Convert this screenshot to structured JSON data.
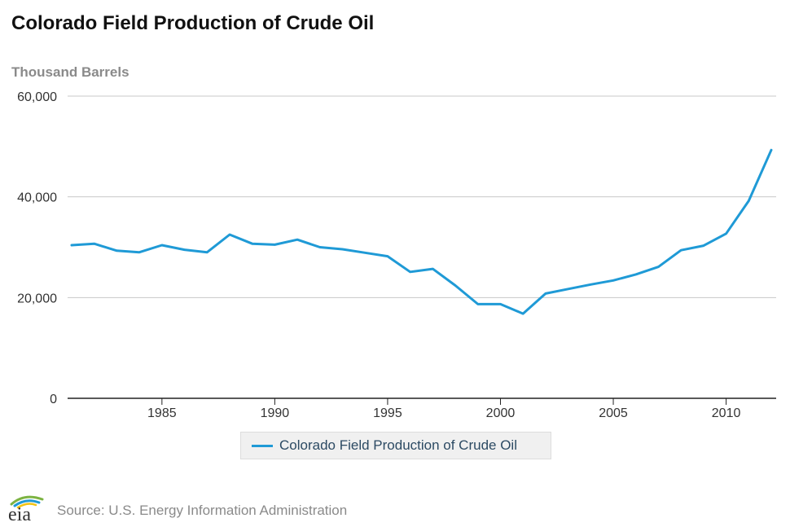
{
  "title": "Colorado Field Production of Crude Oil",
  "source": "Source: U.S. Energy Information Administration",
  "logo_text": "eia",
  "colors": {
    "series": "#1f9ad6",
    "grid": "#c8c8c8",
    "axis": "#222222",
    "logo_green": "#7cb342",
    "logo_blue": "#1f9ad6",
    "logo_yellow": "#f2c314"
  },
  "chart_data": {
    "type": "line",
    "title": "Colorado Field Production of Crude Oil",
    "ylabel": "Thousand Barrels",
    "xlabel": "",
    "ylim": [
      0,
      60000
    ],
    "xlim": [
      1981,
      2012
    ],
    "yticks": [
      0,
      20000,
      40000,
      60000
    ],
    "ytick_labels": [
      "0",
      "20,000",
      "40,000",
      "60,000"
    ],
    "xticks": [
      1985,
      1990,
      1995,
      2000,
      2005,
      2010
    ],
    "xtick_labels": [
      "1985",
      "1990",
      "1995",
      "2000",
      "2005",
      "2010"
    ],
    "grid": true,
    "legend": "bottom-center",
    "x": [
      1981,
      1982,
      1983,
      1984,
      1985,
      1986,
      1987,
      1988,
      1989,
      1990,
      1991,
      1992,
      1993,
      1994,
      1995,
      1996,
      1997,
      1998,
      1999,
      2000,
      2001,
      2002,
      2003,
      2004,
      2005,
      2006,
      2007,
      2008,
      2009,
      2010,
      2011,
      2012
    ],
    "series": [
      {
        "name": "Colorado Field Production of Crude Oil",
        "values": [
          30400,
          30700,
          29300,
          29000,
          30400,
          29500,
          29000,
          32500,
          30700,
          30500,
          31500,
          30000,
          29600,
          28900,
          28200,
          25100,
          25700,
          22400,
          18700,
          18700,
          16800,
          20800,
          21700,
          22600,
          23400,
          24600,
          26100,
          29400,
          30300,
          32700,
          39200,
          49300
        ]
      }
    ]
  }
}
